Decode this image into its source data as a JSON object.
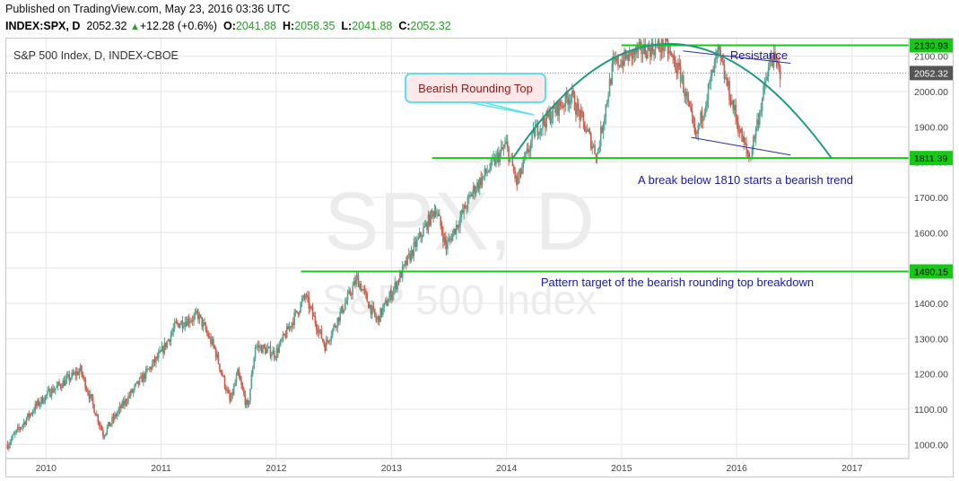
{
  "header": {
    "published": "Published on TradingView.com, May 23, 2016 03:36 UTC",
    "symbol": "INDEX:SPX, D",
    "price": "2052.32",
    "change": "+12.28 (+0.6%)",
    "open_label": "O:",
    "open": "2041.88",
    "high_label": "H:",
    "high": "2058.35",
    "low_label": "L:",
    "low": "2041.88",
    "close_label": "C:",
    "close": "2052.32"
  },
  "chart_data": {
    "type": "candlestick",
    "title": "S&P 500 Index, D, INDEX-CBOE",
    "watermark_line1": "SPX, D",
    "watermark_line2": "S&P 500 Index",
    "x": [
      "2009-09-01",
      "2009-12-01",
      "2010-01-15",
      "2010-04-20",
      "2010-07-02",
      "2010-09-15",
      "2010-12-31",
      "2011-02-18",
      "2011-04-29",
      "2011-06-20",
      "2011-08-08",
      "2011-09-01",
      "2011-10-03",
      "2011-10-27",
      "2011-12-30",
      "2012-04-02",
      "2012-06-04",
      "2012-09-14",
      "2012-11-15",
      "2012-12-31",
      "2013-03-15",
      "2013-05-21",
      "2013-06-24",
      "2013-09-18",
      "2013-12-31",
      "2014-02-03",
      "2014-04-02",
      "2014-07-24",
      "2014-10-15",
      "2014-12-05",
      "2015-02-25",
      "2015-05-20",
      "2015-07-08",
      "2015-08-24",
      "2015-11-03",
      "2016-01-20",
      "2016-02-11",
      "2016-04-20",
      "2016-05-20"
    ],
    "y": [
      1000,
      1110,
      1150,
      1210,
      1030,
      1130,
      1257,
      1340,
      1365,
      1270,
      1120,
      1200,
      1100,
      1280,
      1257,
      1420,
      1280,
      1470,
      1350,
      1426,
      1560,
      1670,
      1560,
      1720,
      1848,
      1740,
      1890,
      1990,
      1820,
      2075,
      2115,
      2130,
      2045,
      1867,
      2110,
      1859,
      1810,
      2100,
      2052
    ],
    "xlim": [
      "2009-08-28",
      "2017-06-30"
    ],
    "ylim": [
      960,
      2150
    ],
    "y_ticks": [
      "2100.00",
      "2000.00",
      "1900.00",
      "1800.00",
      "1700.00",
      "1600.00",
      "1500.00",
      "1400.00",
      "1300.00",
      "1200.00",
      "1100.00",
      "1000.00"
    ],
    "x_ticks": [
      "2010",
      "2011",
      "2012",
      "2013",
      "2014",
      "2015",
      "2016",
      "2017"
    ],
    "price_labels": [
      {
        "value": 2130.93,
        "text": "2130.93",
        "color": "#16c916"
      },
      {
        "value": 2052.32,
        "text": "2052.32",
        "color": "#555555"
      },
      {
        "value": 1811.39,
        "text": "1811.39",
        "color": "#16c916"
      },
      {
        "value": 1490.15,
        "text": "1490.15",
        "color": "#16c916"
      }
    ],
    "levels": [
      {
        "value": 2130.93,
        "from": "2015-01-01",
        "to": "2017-06-30"
      },
      {
        "value": 1811.39,
        "from": "2013-05-10",
        "to": "2017-06-30"
      },
      {
        "value": 1490.15,
        "from": "2012-03-20",
        "to": "2017-06-30"
      }
    ],
    "arc": [
      {
        "x": "2014-01-20",
        "y": 1810
      },
      {
        "x": "2015-06-01",
        "y": 2135
      },
      {
        "x": "2016-10-28",
        "y": 1811
      }
    ],
    "channel": [
      {
        "x1": "2015-07-15",
        "y1": 2115,
        "x2": "2016-06-20",
        "y2": 2080
      },
      {
        "x1": "2015-08-10",
        "y1": 1870,
        "x2": "2016-06-20",
        "y2": 1820
      }
    ],
    "annotations": {
      "callout": "Bearish Rounding Top",
      "resistance": "Resistance",
      "break_text": "A break below 1810 starts a bearish trend",
      "target_text": "Pattern target of the bearish rounding top breakdown"
    },
    "colors": {
      "up": "#53a38f",
      "down": "#cf5a4a",
      "level": "#16c916",
      "arc": "#1f9a82",
      "channel": "#3030a0",
      "text": "#1a1aa0",
      "callout_border": "#5fe0ec",
      "callout_text": "#8b1a1a",
      "callout_fill": "#fde8ea"
    }
  }
}
